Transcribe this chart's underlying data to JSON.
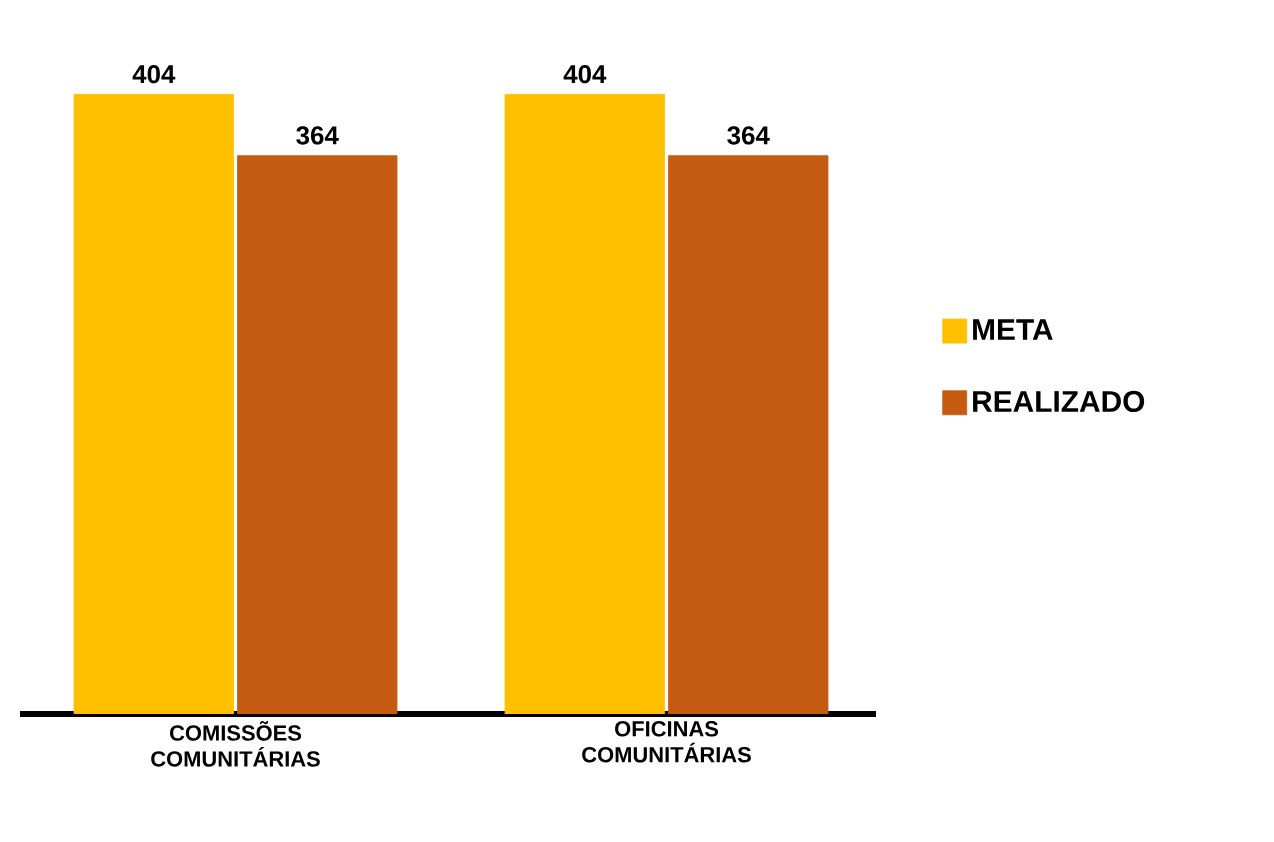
{
  "chart_data": {
    "type": "bar",
    "categories": [
      "COMISSÕES COMUNITÁRIAS",
      "OFICINAS COMUNITÁRIAS"
    ],
    "series": [
      {
        "name": "META",
        "color": "#ffc000",
        "values": [
          404,
          404
        ]
      },
      {
        "name": "REALIZADO",
        "color": "#c55a11",
        "values": [
          364,
          364
        ]
      }
    ],
    "data_labels": true,
    "legend": "right"
  }
}
